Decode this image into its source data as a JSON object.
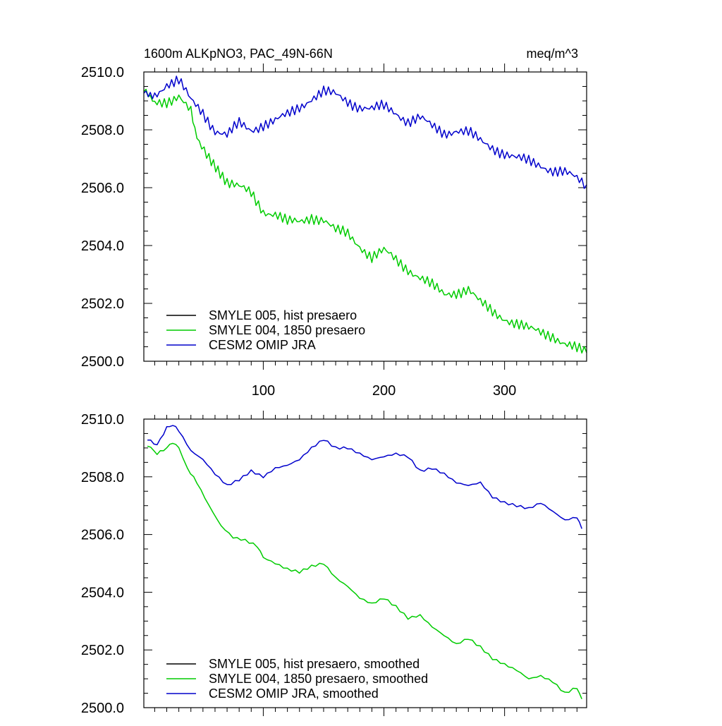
{
  "colors": {
    "hist": "#000000",
    "pre1850": "#00cc00",
    "omip": "#0000cc"
  },
  "chart_data": [
    {
      "type": "line",
      "title": "1600m ALKpNO3, PAC_49N-66N",
      "units": "meq/m^3",
      "xlabel": "",
      "ylabel": "",
      "xlim": [
        1,
        368
      ],
      "ylim": [
        2500.0,
        2510.0
      ],
      "xticks": [
        100,
        200,
        300
      ],
      "xtick_labels": [
        "100",
        "200",
        "300"
      ],
      "yticks": [
        2500.0,
        2502.0,
        2504.0,
        2506.0,
        2508.0,
        2510.0
      ],
      "ytick_labels": [
        "2500.0",
        "2502.0",
        "2504.0",
        "2506.0",
        "2508.0",
        "2510.0"
      ],
      "legend_position": "bottom-left",
      "series": [
        {
          "name": "SMYLE 005, hist presaero",
          "color_key": "hist",
          "x": [],
          "values": []
        },
        {
          "name": "SMYLE 004, 1850 presaero",
          "color_key": "pre1850",
          "x": [
            1,
            10,
            20,
            30,
            40,
            45,
            55,
            70,
            80,
            90,
            100,
            110,
            120,
            130,
            140,
            150,
            160,
            170,
            180,
            190,
            200,
            210,
            220,
            230,
            240,
            250,
            260,
            270,
            280,
            290,
            300,
            310,
            320,
            330,
            340,
            350,
            360,
            368
          ],
          "values": [
            2509.5,
            2508.9,
            2509.0,
            2509.2,
            2508.6,
            2507.8,
            2507.0,
            2506.2,
            2506.0,
            2505.8,
            2505.2,
            2505.1,
            2504.8,
            2504.8,
            2505.0,
            2504.9,
            2504.5,
            2504.4,
            2504.0,
            2503.6,
            2503.8,
            2503.5,
            2503.2,
            2502.9,
            2502.6,
            2502.3,
            2502.4,
            2502.5,
            2502.0,
            2501.7,
            2501.5,
            2501.3,
            2501.1,
            2501.0,
            2500.9,
            2500.6,
            2500.4,
            2500.3
          ]
        },
        {
          "name": "CESM2 OMIP JRA",
          "color_key": "omip",
          "x": [
            1,
            10,
            20,
            30,
            40,
            50,
            60,
            70,
            80,
            90,
            100,
            110,
            120,
            130,
            140,
            150,
            160,
            170,
            180,
            190,
            200,
            210,
            220,
            230,
            240,
            250,
            260,
            270,
            280,
            290,
            300,
            310,
            320,
            330,
            340,
            350,
            360,
            368
          ],
          "values": [
            2509.4,
            2509.2,
            2509.6,
            2509.7,
            2509.0,
            2508.6,
            2508.0,
            2507.8,
            2508.2,
            2508.0,
            2508.2,
            2508.3,
            2508.5,
            2508.8,
            2509.1,
            2509.3,
            2509.2,
            2509.0,
            2508.8,
            2508.7,
            2508.8,
            2508.6,
            2508.3,
            2508.4,
            2508.1,
            2507.9,
            2508.0,
            2507.9,
            2507.6,
            2507.4,
            2507.2,
            2507.0,
            2506.9,
            2506.8,
            2506.6,
            2506.5,
            2506.3,
            2506.1
          ]
        }
      ]
    },
    {
      "type": "line",
      "title": "",
      "units": "",
      "xlabel": "",
      "ylabel": "",
      "xlim": [
        1,
        368
      ],
      "ylim": [
        2500.0,
        2510.0
      ],
      "xticks": [
        100,
        200,
        300
      ],
      "xtick_labels": [],
      "yticks": [
        2500.0,
        2502.0,
        2504.0,
        2506.0,
        2508.0,
        2510.0
      ],
      "ytick_labels": [
        "2500.0",
        "2502.0",
        "2504.0",
        "2506.0",
        "2508.0",
        "2510.0"
      ],
      "legend_position": "bottom-left",
      "series": [
        {
          "name": "SMYLE 005, hist presaero, smoothed",
          "color_key": "hist",
          "x": [],
          "values": []
        },
        {
          "name": "SMYLE 004, 1850 presaero, smoothed",
          "color_key": "pre1850",
          "x": [
            4,
            12,
            20,
            25,
            30,
            37,
            45,
            55,
            65,
            75,
            85,
            95,
            100,
            110,
            120,
            130,
            140,
            150,
            160,
            170,
            180,
            190,
            200,
            210,
            220,
            230,
            240,
            250,
            260,
            270,
            280,
            290,
            300,
            310,
            320,
            330,
            340,
            350,
            360,
            364
          ],
          "values": [
            2509.1,
            2508.8,
            2509.0,
            2509.2,
            2509.0,
            2508.3,
            2507.8,
            2507.0,
            2506.3,
            2505.9,
            2505.8,
            2505.6,
            2505.2,
            2505.0,
            2504.8,
            2504.7,
            2504.9,
            2505.0,
            2504.5,
            2504.2,
            2503.8,
            2503.6,
            2503.8,
            2503.5,
            2503.1,
            2503.2,
            2502.8,
            2502.5,
            2502.2,
            2502.4,
            2502.1,
            2501.7,
            2501.5,
            2501.3,
            2501.0,
            2501.1,
            2500.9,
            2500.5,
            2500.7,
            2500.3
          ]
        },
        {
          "name": "CESM2 OMIP JRA, smoothed",
          "color_key": "omip",
          "x": [
            4,
            12,
            20,
            25,
            30,
            40,
            50,
            60,
            70,
            80,
            90,
            100,
            110,
            120,
            130,
            140,
            150,
            160,
            170,
            180,
            190,
            200,
            210,
            220,
            230,
            240,
            250,
            260,
            270,
            280,
            290,
            300,
            310,
            320,
            330,
            340,
            350,
            360,
            364
          ],
          "values": [
            2509.3,
            2509.1,
            2509.7,
            2509.8,
            2509.6,
            2508.9,
            2508.6,
            2508.1,
            2507.7,
            2507.9,
            2508.2,
            2508.0,
            2508.3,
            2508.4,
            2508.6,
            2509.0,
            2509.3,
            2509.0,
            2509.0,
            2508.8,
            2508.6,
            2508.7,
            2508.8,
            2508.7,
            2508.2,
            2508.3,
            2508.1,
            2507.8,
            2507.7,
            2507.8,
            2507.3,
            2507.1,
            2507.0,
            2506.9,
            2507.1,
            2506.8,
            2506.5,
            2506.6,
            2506.2
          ]
        }
      ]
    }
  ]
}
